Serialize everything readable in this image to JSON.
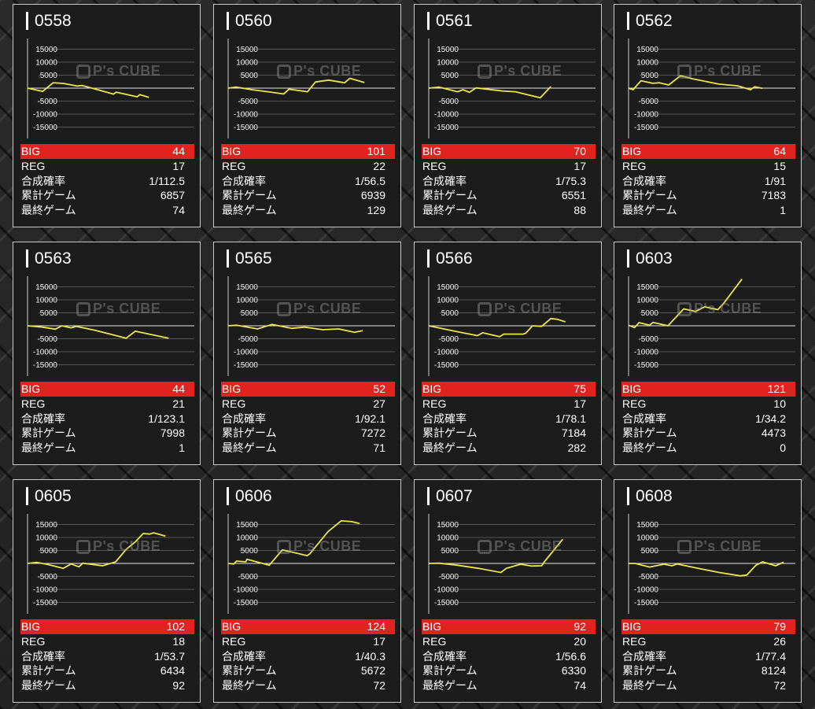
{
  "labels": {
    "big": "BIG",
    "reg": "REG",
    "prob": "合成確率",
    "total": "累計ゲーム",
    "last": "最終ゲーム"
  },
  "watermark": "P's CUBE",
  "colors": {
    "big_bar": "#e0231e",
    "line": "#ebe54a",
    "card_bg": "#1c1c1c"
  },
  "y_ticks": [
    "15000",
    "10000",
    "5000",
    "-5000",
    "-10000",
    "-15000"
  ],
  "machines": [
    {
      "id": "0558",
      "big": "44",
      "reg": "17",
      "prob": "1/112.5",
      "total": "6857",
      "last": "74"
    },
    {
      "id": "0560",
      "big": "101",
      "reg": "22",
      "prob": "1/56.5",
      "total": "6939",
      "last": "129"
    },
    {
      "id": "0561",
      "big": "70",
      "reg": "17",
      "prob": "1/75.3",
      "total": "6551",
      "last": "88"
    },
    {
      "id": "0562",
      "big": "64",
      "reg": "15",
      "prob": "1/91",
      "total": "7183",
      "last": "1"
    },
    {
      "id": "0563",
      "big": "44",
      "reg": "21",
      "prob": "1/123.1",
      "total": "7998",
      "last": "1"
    },
    {
      "id": "0565",
      "big": "52",
      "reg": "27",
      "prob": "1/92.1",
      "total": "7272",
      "last": "71"
    },
    {
      "id": "0566",
      "big": "75",
      "reg": "17",
      "prob": "1/78.1",
      "total": "7184",
      "last": "282"
    },
    {
      "id": "0603",
      "big": "121",
      "reg": "10",
      "prob": "1/34.2",
      "total": "4473",
      "last": "0"
    },
    {
      "id": "0605",
      "big": "102",
      "reg": "18",
      "prob": "1/53.7",
      "total": "6434",
      "last": "92"
    },
    {
      "id": "0606",
      "big": "124",
      "reg": "17",
      "prob": "1/40.3",
      "total": "5672",
      "last": "72"
    },
    {
      "id": "0607",
      "big": "92",
      "reg": "20",
      "prob": "1/56.6",
      "total": "6330",
      "last": "74"
    },
    {
      "id": "0608",
      "big": "79",
      "reg": "26",
      "prob": "1/77.4",
      "total": "8124",
      "last": "72"
    }
  ],
  "chart_data": [
    {
      "type": "line",
      "title": "0558",
      "ylim": [
        -15000,
        15000
      ],
      "xlim": [
        0,
        9420
      ],
      "x": [
        0,
        859,
        1451,
        2044,
        2784,
        3080,
        4858,
        5006,
        6191,
        6339,
        6857
      ],
      "y": [
        0,
        -1250,
        2100,
        1800,
        830,
        1040,
        -2300,
        -1560,
        -3330,
        -2500,
        -3540
      ]
    },
    {
      "type": "line",
      "title": "0560",
      "ylim": [
        -15000,
        15000
      ],
      "xlim": [
        0,
        8490
      ],
      "x": [
        0,
        404,
        1212,
        2021,
        2829,
        3098,
        4041,
        4445,
        5119,
        5927,
        6196,
        6939
      ],
      "y": [
        0,
        400,
        -600,
        -1400,
        -2250,
        -400,
        -1400,
        2350,
        3100,
        2050,
        3800,
        2150
      ]
    },
    {
      "type": "line",
      "title": "0561",
      "ylim": [
        -15000,
        15000
      ],
      "xlim": [
        0,
        8950
      ],
      "x": [
        0,
        564,
        1550,
        1832,
        2184,
        2536,
        3945,
        4650,
        5988,
        6551
      ],
      "y": [
        0,
        400,
        -1400,
        -600,
        -1600,
        100,
        -1100,
        -1400,
        -3700,
        600
      ]
    },
    {
      "type": "line",
      "title": "0562",
      "ylim": [
        -15000,
        15000
      ],
      "xlim": [
        0,
        8950
      ],
      "x": [
        0,
        241,
        666,
        1304,
        1658,
        2154,
        2791,
        3429,
        4846,
        5838,
        6546,
        6759,
        7183
      ],
      "y": [
        0,
        -600,
        2850,
        1850,
        2050,
        1200,
        4800,
        3600,
        1550,
        900,
        -600,
        500,
        -100
      ]
    },
    {
      "type": "line",
      "title": "0563",
      "ylim": [
        -15000,
        15000
      ],
      "xlim": [
        0,
        9455
      ],
      "x": [
        0,
        833,
        1576,
        1948,
        2468,
        2766,
        3806,
        5590,
        6111,
        7078,
        7998
      ],
      "y": [
        0,
        -500,
        -1300,
        0,
        -800,
        -200,
        -1700,
        -4800,
        -2100,
        -3500,
        -4800
      ]
    },
    {
      "type": "line",
      "title": "0565",
      "ylim": [
        -15000,
        15000
      ],
      "xlim": [
        0,
        9010
      ],
      "x": [
        0,
        453,
        1585,
        2363,
        3424,
        4132,
        5122,
        5971,
        6820,
        7272
      ],
      "y": [
        0,
        200,
        -1200,
        500,
        -1000,
        -500,
        -1500,
        -1200,
        -2500,
        -1900
      ]
    },
    {
      "type": "line",
      "title": "0566",
      "ylim": [
        -15000,
        15000
      ],
      "xlim": [
        0,
        8770
      ],
      "x": [
        0,
        1520,
        2557,
        2833,
        3731,
        3938,
        4975,
        5113,
        5458,
        5942,
        6426,
        6771,
        7184
      ],
      "y": [
        0,
        -2300,
        -3800,
        -2700,
        -4200,
        -3200,
        -3200,
        -2800,
        0,
        -200,
        2800,
        2500,
        1500
      ]
    },
    {
      "type": "line",
      "title": "0603",
      "ylim": [
        -15000,
        15000
      ],
      "xlim": [
        0,
        6575
      ],
      "x": [
        0,
        238,
        414,
        828,
        963,
        1553,
        2174,
        2640,
        3002,
        3520,
        3779,
        4473
      ],
      "y": [
        200,
        -700,
        1200,
        200,
        1300,
        0,
        6500,
        5500,
        7300,
        6200,
        9000,
        18000
      ]
    },
    {
      "type": "line",
      "title": "0605",
      "ylim": [
        -15000,
        15000
      ],
      "xlim": [
        0,
        7780
      ],
      "x": [
        0,
        440,
        930,
        1663,
        2030,
        2397,
        2580,
        3498,
        4109,
        4599,
        5027,
        5394,
        5700,
        5883,
        6434
      ],
      "y": [
        0,
        400,
        -400,
        -1900,
        -200,
        -1300,
        100,
        -900,
        600,
        5400,
        8300,
        11500,
        11300,
        11800,
        10500
      ]
    },
    {
      "type": "line",
      "title": "0606",
      "ylim": [
        -15000,
        15000
      ],
      "xlim": [
        0,
        7200
      ],
      "x": [
        0,
        249,
        362,
        757,
        814,
        1774,
        2339,
        3413,
        3526,
        4317,
        4882,
        5334,
        5672
      ],
      "y": [
        0,
        -200,
        900,
        600,
        1600,
        -700,
        5200,
        3000,
        3700,
        12300,
        16400,
        16100,
        15400
      ]
    },
    {
      "type": "line",
      "title": "0607",
      "ylim": [
        -15000,
        15000
      ],
      "xlim": [
        0,
        7880
      ],
      "x": [
        0,
        496,
        1365,
        2358,
        3413,
        3661,
        4344,
        4840,
        5337,
        5461,
        6330
      ],
      "y": [
        0,
        100,
        -700,
        -1900,
        -3500,
        -1900,
        -300,
        -1000,
        -900,
        600,
        9300
      ]
    },
    {
      "type": "line",
      "title": "0608",
      "ylim": [
        -15000,
        15000
      ],
      "xlim": [
        0,
        8740
      ],
      "x": [
        0,
        344,
        1102,
        1859,
        2272,
        2547,
        3649,
        4750,
        5852,
        6196,
        6678,
        7022,
        7711,
        8124
      ],
      "y": [
        0,
        0,
        -1400,
        -300,
        -900,
        -200,
        -1900,
        -3500,
        -4800,
        -4500,
        -700,
        600,
        -900,
        500
      ]
    }
  ]
}
